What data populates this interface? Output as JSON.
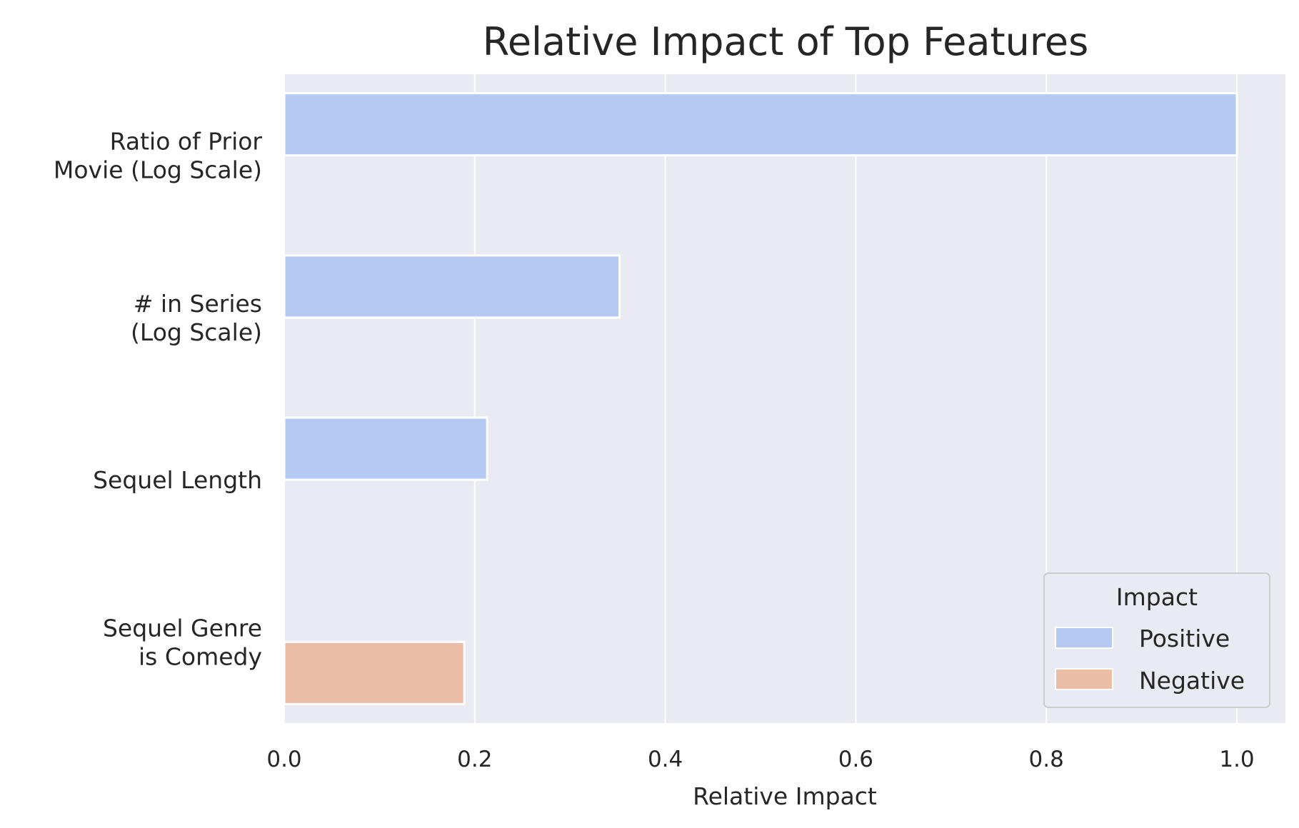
{
  "chart_data": {
    "type": "bar",
    "orientation": "horizontal",
    "title": "Relative Impact of Top Features",
    "xlabel": "Relative Impact",
    "ylabel": "",
    "xlim": [
      0,
      1.05
    ],
    "xticks": [
      0.0,
      0.2,
      0.4,
      0.6,
      0.8,
      1.0
    ],
    "xtick_labels": [
      "0.0",
      "0.2",
      "0.4",
      "0.6",
      "0.8",
      "1.0"
    ],
    "grid": true,
    "categories": [
      [
        "Ratio of Prior",
        "Movie (Log Scale)"
      ],
      [
        "# in Series",
        "(Log Scale)"
      ],
      [
        "Sequel Length"
      ],
      [
        "Sequel Genre",
        "is Comedy"
      ]
    ],
    "series": [
      {
        "name": "Positive",
        "color": "#b5c9f2",
        "values": [
          1.0,
          0.352,
          0.213,
          null
        ]
      },
      {
        "name": "Negative",
        "color": "#ebbca6",
        "values": [
          null,
          null,
          null,
          0.189
        ]
      }
    ],
    "legend": {
      "title": "Impact",
      "placement": "lower-right"
    }
  }
}
